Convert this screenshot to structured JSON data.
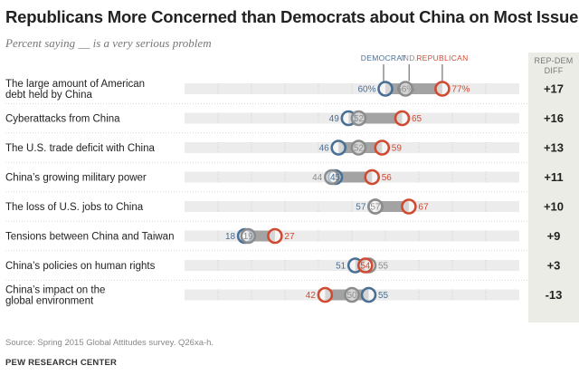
{
  "title": "Republicans More Concerned than Democrats about China on Most Issues",
  "subtitle": "Percent saying __ is a very serious problem",
  "diff_header": [
    "REP-DEM",
    "DIFF"
  ],
  "source": "Source: Spring 2015 Global Attitudes survey. Q26xa-h.",
  "credit": "PEW RESEARCH CENTER",
  "colors": {
    "democrat": "#4a6f95",
    "independent": "#8c8c8c",
    "republican": "#d04a32",
    "track": "#ececec",
    "range_bar": "#a3a3a3",
    "diff_background": "#ecece6"
  },
  "chart_data": {
    "type": "dot-range",
    "title": "Republicans More Concerned than Democrats about China on Most Issues",
    "subtitle": "Percent saying __ is a very serious problem",
    "xlim": [
      0,
      100
    ],
    "legend": {
      "democrat": "DEMOCRAT",
      "independent": "IND.",
      "republican": "REPUBLICAN",
      "position": "top"
    },
    "series_names": [
      "Democrat",
      "Ind.",
      "Republican"
    ],
    "rows": [
      {
        "label": [
          "The large amount of American",
          "debt held by China"
        ],
        "dem": 60,
        "ind": 66,
        "rep": 77,
        "dem_label": "60%",
        "ind_label": "66%",
        "rep_label": "77%",
        "diff": "+17"
      },
      {
        "label": [
          "Cyberattacks from China"
        ],
        "dem": 49,
        "ind": 52,
        "rep": 65,
        "dem_label": "49",
        "ind_label": "52",
        "rep_label": "65",
        "diff": "+16"
      },
      {
        "label": [
          "The U.S. trade deficit with China"
        ],
        "dem": 46,
        "ind": 52,
        "rep": 59,
        "dem_label": "46",
        "ind_label": "52",
        "rep_label": "59",
        "diff": "+13"
      },
      {
        "label": [
          "China’s growing military power"
        ],
        "dem": 45,
        "ind": 44,
        "rep": 56,
        "dem_label": "45",
        "ind_label": "44",
        "rep_label": "56",
        "diff": "+11"
      },
      {
        "label": [
          "The loss of U.S. jobs to China"
        ],
        "dem": 57,
        "ind": 57,
        "rep": 67,
        "dem_label": "57",
        "ind_label": "57",
        "rep_label": "67",
        "diff": "+10"
      },
      {
        "label": [
          "Tensions between China and Taiwan"
        ],
        "dem": 18,
        "ind": 19,
        "rep": 27,
        "dem_label": "18",
        "ind_label": "19",
        "rep_label": "27",
        "diff": "+9"
      },
      {
        "label": [
          "China’s policies on human rights"
        ],
        "dem": 51,
        "ind": 55,
        "rep": 54,
        "dem_label": "51",
        "ind_label": "55",
        "rep_label": "54",
        "diff": "+3"
      },
      {
        "label": [
          "China’s impact on the",
          "global environment"
        ],
        "dem": 55,
        "ind": 50,
        "rep": 42,
        "dem_label": "55",
        "ind_label": "50",
        "rep_label": "42",
        "diff": "-13"
      }
    ]
  }
}
